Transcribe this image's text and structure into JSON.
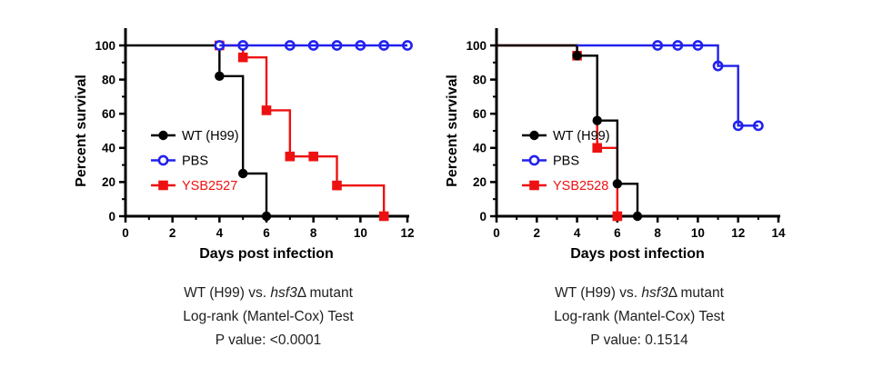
{
  "page": {
    "background": "#ffffff"
  },
  "colors": {
    "axis": "#000000",
    "wt_black": "#000000",
    "pbs_blue": "#2121EE",
    "mutant_red": "#EE1111",
    "caption_text": "#1e1e1e"
  },
  "chart_data": [
    {
      "type": "line",
      "subtype": "kaplan-meier-survival",
      "title": "",
      "xlabel": "Days post infection",
      "ylabel": "Percent survival",
      "xlim": [
        0,
        12
      ],
      "ylim": [
        0,
        100
      ],
      "xticks": [
        0,
        2,
        4,
        6,
        8,
        10,
        12
      ],
      "yticks": [
        0,
        20,
        40,
        60,
        80,
        100
      ],
      "x_minor_step": 1,
      "y_minor_step": 10,
      "grid": false,
      "legend_position": "inside-left",
      "series": [
        {
          "name": "YSB2527",
          "color": "#EE1111",
          "label_color": "#EE1111",
          "marker": "filled-square",
          "legend_order": 3,
          "steps": [
            [
              4,
              100
            ],
            [
              5,
              100
            ],
            [
              5,
              93
            ],
            [
              6,
              93
            ],
            [
              6,
              62
            ],
            [
              7,
              62
            ],
            [
              7,
              35
            ],
            [
              9,
              35
            ],
            [
              9,
              18
            ],
            [
              11,
              18
            ],
            [
              11,
              0
            ]
          ],
          "markers": [
            [
              4,
              100
            ],
            [
              5,
              93
            ],
            [
              6,
              62
            ],
            [
              7,
              35
            ],
            [
              8,
              35
            ],
            [
              9,
              18
            ],
            [
              11,
              0
            ]
          ]
        },
        {
          "name": "WT (H99)",
          "color": "#000000",
          "label_color": "#000000",
          "marker": "filled-circle",
          "legend_order": 1,
          "steps": [
            [
              0,
              100
            ],
            [
              4,
              100
            ],
            [
              4,
              82
            ],
            [
              5,
              82
            ],
            [
              5,
              25
            ],
            [
              6,
              25
            ],
            [
              6,
              0
            ]
          ],
          "markers": [
            [
              4,
              100
            ],
            [
              4,
              82
            ],
            [
              5,
              25
            ],
            [
              6,
              0
            ]
          ]
        },
        {
          "name": "PBS",
          "color": "#2121EE",
          "label_color": "#000000",
          "marker": "open-circle",
          "legend_order": 2,
          "steps": [
            [
              4,
              100
            ],
            [
              12,
              100
            ]
          ],
          "markers": [
            [
              4,
              100
            ],
            [
              5,
              100
            ],
            [
              7,
              100
            ],
            [
              8,
              100
            ],
            [
              9,
              100
            ],
            [
              10,
              100
            ],
            [
              11,
              100
            ],
            [
              12,
              100
            ]
          ]
        }
      ],
      "caption": {
        "line1_pre": "WT (H99) vs. ",
        "line1_italic": "hsf3",
        "line1_post": "Δ mutant",
        "line2": "Log-rank (Mantel-Cox) Test",
        "line3": "P value: <0.0001"
      }
    },
    {
      "type": "line",
      "subtype": "kaplan-meier-survival",
      "title": "",
      "xlabel": "Days post infection",
      "ylabel": "Percent survival",
      "xlim": [
        0,
        14
      ],
      "ylim": [
        0,
        100
      ],
      "xticks": [
        0,
        2,
        4,
        6,
        8,
        10,
        12,
        14
      ],
      "yticks": [
        0,
        20,
        40,
        60,
        80,
        100
      ],
      "x_minor_step": 1,
      "y_minor_step": 10,
      "grid": false,
      "legend_position": "inside-left",
      "series": [
        {
          "name": "YSB2528",
          "color": "#EE1111",
          "label_color": "#EE1111",
          "marker": "filled-square",
          "legend_order": 3,
          "steps": [
            [
              0,
              100
            ],
            [
              4,
              100
            ],
            [
              4,
              94
            ],
            [
              5,
              94
            ],
            [
              5,
              40
            ],
            [
              6,
              40
            ],
            [
              6,
              0
            ]
          ],
          "markers": [
            [
              4,
              94
            ],
            [
              5,
              40
            ],
            [
              6,
              0
            ]
          ]
        },
        {
          "name": "WT (H99)",
          "color": "#000000",
          "label_color": "#000000",
          "marker": "filled-circle",
          "legend_order": 1,
          "steps": [
            [
              0,
              100
            ],
            [
              4,
              100
            ],
            [
              4,
              94
            ],
            [
              5,
              94
            ],
            [
              5,
              56
            ],
            [
              6,
              56
            ],
            [
              6,
              19
            ],
            [
              7,
              19
            ],
            [
              7,
              0
            ]
          ],
          "markers": [
            [
              4,
              94
            ],
            [
              5,
              56
            ],
            [
              6,
              19
            ],
            [
              7,
              0
            ]
          ]
        },
        {
          "name": "PBS",
          "color": "#2121EE",
          "label_color": "#000000",
          "marker": "open-circle",
          "legend_order": 2,
          "steps": [
            [
              4,
              100
            ],
            [
              11,
              100
            ],
            [
              11,
              88
            ],
            [
              12,
              88
            ],
            [
              12,
              53
            ],
            [
              13,
              53
            ]
          ],
          "markers": [
            [
              8,
              100
            ],
            [
              9,
              100
            ],
            [
              10,
              100
            ],
            [
              11,
              88
            ],
            [
              12,
              53
            ],
            [
              13,
              53
            ]
          ]
        }
      ],
      "caption": {
        "line1_pre": "WT (H99) vs. ",
        "line1_italic": "hsf3",
        "line1_post": "Δ mutant",
        "line2": "Log-rank (Mantel-Cox) Test",
        "line3": "P value: 0.1514"
      }
    }
  ]
}
